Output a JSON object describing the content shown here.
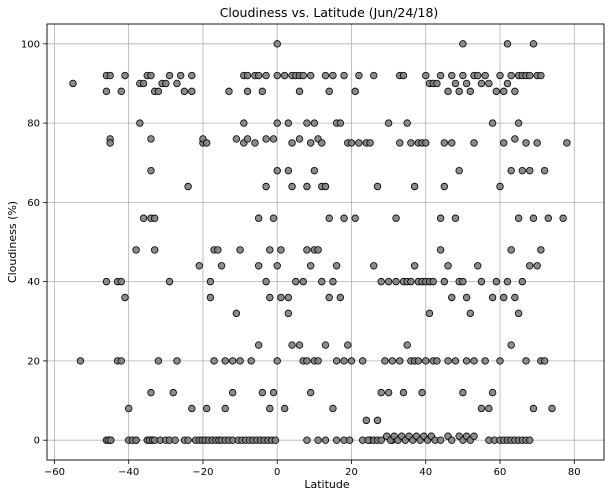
{
  "chart_data": {
    "type": "scatter",
    "title": "Cloudiness vs. Latitude (Jun/24/18)",
    "xlabel": "Latitude",
    "ylabel": "Cloudiness (%)",
    "xlim": [
      -62,
      88
    ],
    "ylim": [
      -5,
      105
    ],
    "xticks": [
      -60,
      -40,
      -20,
      0,
      20,
      40,
      60,
      80
    ],
    "yticks": [
      0,
      20,
      40,
      60,
      80,
      100
    ],
    "grid": true,
    "marker_face": "#808080",
    "marker_edge": "#000000",
    "points": [
      [
        -55,
        90
      ],
      [
        -53,
        20
      ],
      [
        -46,
        92
      ],
      [
        -45,
        92
      ],
      [
        -46,
        88
      ],
      [
        -45,
        76
      ],
      [
        -45,
        75
      ],
      [
        -46,
        40
      ],
      [
        -46,
        0
      ],
      [
        -45,
        0
      ],
      [
        -43,
        40
      ],
      [
        -42,
        40
      ],
      [
        -43,
        20
      ],
      [
        -42,
        20
      ],
      [
        -42,
        88
      ],
      [
        -41,
        92
      ],
      [
        -41,
        36
      ],
      [
        -40,
        8
      ],
      [
        -40,
        0
      ],
      [
        -38,
        0
      ],
      [
        -38,
        48
      ],
      [
        -37,
        80
      ],
      [
        -37,
        90
      ],
      [
        -36,
        90
      ],
      [
        -36,
        56
      ],
      [
        -35,
        92
      ],
      [
        -34,
        92
      ],
      [
        -34,
        76
      ],
      [
        -34,
        68
      ],
      [
        -34,
        56
      ],
      [
        -33,
        56
      ],
      [
        -33,
        48
      ],
      [
        -34,
        12
      ],
      [
        -34,
        0
      ],
      [
        -33,
        88
      ],
      [
        -32,
        88
      ],
      [
        -32,
        20
      ],
      [
        -31,
        90
      ],
      [
        -30,
        90
      ],
      [
        -29,
        92
      ],
      [
        -29,
        40
      ],
      [
        -28,
        12
      ],
      [
        -27,
        90
      ],
      [
        -27,
        20
      ],
      [
        -26,
        92
      ],
      [
        -25,
        88
      ],
      [
        -24,
        64
      ],
      [
        -23,
        88
      ],
      [
        -23,
        92
      ],
      [
        -23,
        8
      ],
      [
        -21,
        44
      ],
      [
        -20,
        75
      ],
      [
        -20,
        76
      ],
      [
        -19,
        75
      ],
      [
        -19,
        8
      ],
      [
        -18,
        40
      ],
      [
        -18,
        36
      ],
      [
        -17,
        48
      ],
      [
        -17,
        20
      ],
      [
        -16,
        48
      ],
      [
        -15,
        44
      ],
      [
        -14,
        20
      ],
      [
        -14,
        8
      ],
      [
        -13,
        88
      ],
      [
        -12,
        12
      ],
      [
        -12,
        20
      ],
      [
        -11,
        76
      ],
      [
        -11,
        32
      ],
      [
        -10,
        48
      ],
      [
        -10,
        20
      ],
      [
        -9,
        92
      ],
      [
        -9,
        80
      ],
      [
        -9,
        75
      ],
      [
        -8,
        92
      ],
      [
        -8,
        88
      ],
      [
        -8,
        76
      ],
      [
        -7,
        20
      ],
      [
        -6,
        75
      ],
      [
        -6,
        92
      ],
      [
        -5,
        92
      ],
      [
        -5,
        56
      ],
      [
        -5,
        44
      ],
      [
        -5,
        24
      ],
      [
        -4,
        12
      ],
      [
        -4,
        88
      ],
      [
        -3,
        92
      ],
      [
        -3,
        76
      ],
      [
        -3,
        64
      ],
      [
        -3,
        40
      ],
      [
        -2,
        48
      ],
      [
        -2,
        36
      ],
      [
        -2,
        8
      ],
      [
        -1,
        76
      ],
      [
        -1,
        56
      ],
      [
        -1,
        12
      ],
      [
        0,
        100
      ],
      [
        0,
        92
      ],
      [
        0,
        80
      ],
      [
        0,
        68
      ],
      [
        0,
        44
      ],
      [
        0,
        20
      ],
      [
        1,
        48
      ],
      [
        1,
        36
      ],
      [
        2,
        92
      ],
      [
        2,
        8
      ],
      [
        3,
        80
      ],
      [
        3,
        68
      ],
      [
        3,
        36
      ],
      [
        3,
        32
      ],
      [
        4,
        92
      ],
      [
        4,
        75
      ],
      [
        4,
        64
      ],
      [
        4,
        24
      ],
      [
        5,
        92
      ],
      [
        5,
        40
      ],
      [
        6,
        92
      ],
      [
        6,
        88
      ],
      [
        6,
        76
      ],
      [
        6,
        24
      ],
      [
        7,
        92
      ],
      [
        7,
        40
      ],
      [
        7,
        20
      ],
      [
        8,
        80
      ],
      [
        8,
        64
      ],
      [
        8,
        48
      ],
      [
        8,
        20
      ],
      [
        9,
        92
      ],
      [
        9,
        75
      ],
      [
        9,
        44
      ],
      [
        9,
        12
      ],
      [
        10,
        80
      ],
      [
        10,
        68
      ],
      [
        10,
        48
      ],
      [
        10,
        20
      ],
      [
        11,
        76
      ],
      [
        11,
        48
      ],
      [
        11,
        20
      ],
      [
        12,
        75
      ],
      [
        12,
        64
      ],
      [
        12,
        40
      ],
      [
        13,
        92
      ],
      [
        13,
        64
      ],
      [
        13,
        24
      ],
      [
        14,
        88
      ],
      [
        14,
        56
      ],
      [
        14,
        36
      ],
      [
        15,
        92
      ],
      [
        15,
        40
      ],
      [
        15,
        8
      ],
      [
        16,
        80
      ],
      [
        16,
        44
      ],
      [
        16,
        20
      ],
      [
        17,
        80
      ],
      [
        17,
        36
      ],
      [
        18,
        92
      ],
      [
        18,
        56
      ],
      [
        18,
        20
      ],
      [
        19,
        75
      ],
      [
        19,
        24
      ],
      [
        20,
        75
      ],
      [
        20,
        20
      ],
      [
        21,
        88
      ],
      [
        21,
        56
      ],
      [
        22,
        92
      ],
      [
        22,
        75
      ],
      [
        23,
        20
      ],
      [
        24,
        75
      ],
      [
        24,
        5
      ],
      [
        25,
        75
      ],
      [
        25,
        0
      ],
      [
        26,
        92
      ],
      [
        26,
        44
      ],
      [
        27,
        64
      ],
      [
        27,
        5
      ],
      [
        28,
        40
      ],
      [
        28,
        12
      ],
      [
        29,
        20
      ],
      [
        30,
        80
      ],
      [
        30,
        40
      ],
      [
        30,
        12
      ],
      [
        31,
        20
      ],
      [
        31,
        0
      ],
      [
        32,
        40
      ],
      [
        32,
        56
      ],
      [
        33,
        92
      ],
      [
        33,
        75
      ],
      [
        33,
        20
      ],
      [
        34,
        92
      ],
      [
        34,
        40
      ],
      [
        34,
        12
      ],
      [
        35,
        80
      ],
      [
        35,
        40
      ],
      [
        35,
        24
      ],
      [
        36,
        75
      ],
      [
        36,
        40
      ],
      [
        36,
        20
      ],
      [
        37,
        64
      ],
      [
        37,
        44
      ],
      [
        37,
        20
      ],
      [
        38,
        75
      ],
      [
        38,
        40
      ],
      [
        38,
        20
      ],
      [
        39,
        75
      ],
      [
        39,
        40
      ],
      [
        39,
        12
      ],
      [
        40,
        92
      ],
      [
        40,
        75
      ],
      [
        40,
        40
      ],
      [
        40,
        20
      ],
      [
        41,
        90
      ],
      [
        41,
        40
      ],
      [
        41,
        32
      ],
      [
        42,
        90
      ],
      [
        42,
        40
      ],
      [
        42,
        20
      ],
      [
        43,
        90
      ],
      [
        43,
        20
      ],
      [
        44,
        92
      ],
      [
        44,
        56
      ],
      [
        44,
        48
      ],
      [
        45,
        75
      ],
      [
        45,
        64
      ],
      [
        45,
        40
      ],
      [
        46,
        88
      ],
      [
        46,
        44
      ],
      [
        46,
        20
      ],
      [
        47,
        92
      ],
      [
        47,
        75
      ],
      [
        47,
        36
      ],
      [
        48,
        90
      ],
      [
        48,
        56
      ],
      [
        48,
        20
      ],
      [
        49,
        88
      ],
      [
        49,
        68
      ],
      [
        49,
        40
      ],
      [
        50,
        100
      ],
      [
        50,
        92
      ],
      [
        50,
        40
      ],
      [
        50,
        12
      ],
      [
        51,
        90
      ],
      [
        51,
        36
      ],
      [
        51,
        20
      ],
      [
        52,
        88
      ],
      [
        52,
        32
      ],
      [
        53,
        92
      ],
      [
        53,
        75
      ],
      [
        53,
        20
      ],
      [
        54,
        92
      ],
      [
        54,
        44
      ],
      [
        55,
        90
      ],
      [
        55,
        40
      ],
      [
        55,
        8
      ],
      [
        56,
        92
      ],
      [
        56,
        20
      ],
      [
        57,
        90
      ],
      [
        57,
        8
      ],
      [
        58,
        80
      ],
      [
        58,
        36
      ],
      [
        58,
        12
      ],
      [
        59,
        88
      ],
      [
        59,
        40
      ],
      [
        60,
        92
      ],
      [
        60,
        64
      ],
      [
        60,
        20
      ],
      [
        61,
        88
      ],
      [
        61,
        75
      ],
      [
        61,
        36
      ],
      [
        62,
        100
      ],
      [
        62,
        90
      ],
      [
        62,
        40
      ],
      [
        63,
        92
      ],
      [
        63,
        68
      ],
      [
        63,
        48
      ],
      [
        63,
        24
      ],
      [
        64,
        88
      ],
      [
        64,
        76
      ],
      [
        64,
        36
      ],
      [
        65,
        92
      ],
      [
        65,
        80
      ],
      [
        65,
        56
      ],
      [
        65,
        32
      ],
      [
        66,
        92
      ],
      [
        66,
        68
      ],
      [
        66,
        40
      ],
      [
        67,
        92
      ],
      [
        67,
        75
      ],
      [
        67,
        20
      ],
      [
        68,
        92
      ],
      [
        68,
        68
      ],
      [
        68,
        44
      ],
      [
        69,
        100
      ],
      [
        69,
        56
      ],
      [
        69,
        8
      ],
      [
        70,
        92
      ],
      [
        70,
        75
      ],
      [
        70,
        44
      ],
      [
        71,
        92
      ],
      [
        71,
        48
      ],
      [
        71,
        20
      ],
      [
        72,
        68
      ],
      [
        72,
        20
      ],
      [
        73,
        56
      ],
      [
        74,
        8
      ],
      [
        77,
        56
      ],
      [
        78,
        75
      ]
    ],
    "zero_band_x": [
      -45.5,
      -44.8,
      -39,
      -38,
      -35,
      -34.4,
      -33.6,
      -33,
      -31.5,
      -30,
      -29,
      -27.5,
      -25,
      -24,
      -22,
      -21,
      -20.2,
      -19.4,
      -18.5,
      -17.5,
      -16.5,
      -15.7,
      -15,
      -14,
      -13,
      -12,
      -10.5,
      -9.5,
      -8.5,
      -7.5,
      -6.5,
      -5.5,
      -4.5,
      -3.5,
      -2.5,
      -1.5,
      -0.5,
      8,
      11,
      13,
      16,
      18,
      19.5,
      23,
      24.5,
      26,
      27,
      28,
      29.5,
      30.5,
      31.5,
      32.5,
      33.5,
      34.5,
      35.5,
      36.5,
      37.5,
      38.5,
      39.5,
      40.5,
      41.5,
      42.5,
      44,
      46,
      47,
      49,
      50,
      51,
      52,
      53,
      57,
      58.5,
      60,
      61,
      62,
      63,
      64,
      65,
      66,
      67,
      68
    ],
    "zero_band_y": [
      0,
      0,
      0,
      0,
      0,
      0,
      0,
      0,
      0,
      0,
      0,
      0,
      0,
      0,
      0,
      0,
      0,
      0,
      0,
      0,
      0,
      0,
      0,
      0,
      0,
      0,
      0,
      0,
      0,
      0,
      0,
      0,
      0,
      0,
      0,
      0,
      0,
      0,
      0,
      0,
      0,
      0,
      0,
      0,
      0,
      0,
      0,
      0,
      1,
      0,
      1,
      0,
      1,
      0,
      1,
      0,
      1,
      0,
      1,
      0,
      1,
      0,
      0,
      1,
      0,
      1,
      0,
      1,
      0,
      1,
      0,
      0,
      0,
      0,
      0,
      0,
      0,
      0,
      0,
      0,
      0
    ]
  }
}
